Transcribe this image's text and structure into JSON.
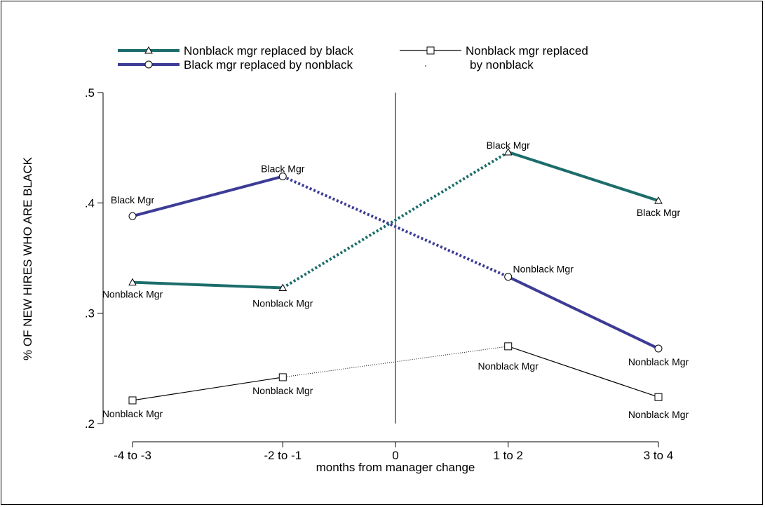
{
  "chart_data": {
    "type": "line",
    "xlabel": "months from manager change",
    "ylabel": "% OF NEW HIRES WHO ARE BLACK",
    "x_ticks": [
      "-4 to -3",
      "-2 to -1",
      "0",
      "1 to 2",
      "3 to 4"
    ],
    "x_tick_values": [
      -3.5,
      -1.5,
      0,
      1.5,
      3.5
    ],
    "y_ticks": [
      ".2",
      ".3",
      ".4",
      ".5"
    ],
    "y_tick_values": [
      0.2,
      0.3,
      0.4,
      0.5
    ],
    "ylim": [
      0.2,
      0.5
    ],
    "xlim": [
      -3.5,
      3.5
    ],
    "vertical_reference_line": 0,
    "legend_placement": "top",
    "series": [
      {
        "name": "Nonblack mgr replaced by black",
        "color": "#1b6d6b",
        "marker": "triangle",
        "x": [
          -3.5,
          -1.5,
          1.5,
          3.5
        ],
        "values": [
          0.328,
          0.323,
          0.446,
          0.402
        ],
        "point_labels": [
          "Nonblack Mgr",
          "Nonblack Mgr",
          "Black Mgr",
          "Black Mgr"
        ],
        "transition_segment": 1
      },
      {
        "name": "Black mgr replaced by nonblack",
        "color": "#3c3c96",
        "marker": "circle",
        "x": [
          -3.5,
          -1.5,
          1.5,
          3.5
        ],
        "values": [
          0.388,
          0.424,
          0.333,
          0.268
        ],
        "point_labels": [
          "Black Mgr",
          "Black Mgr",
          "Nonblack Mgr",
          "Nonblack Mgr"
        ],
        "transition_segment": 1
      },
      {
        "name": "Nonblack mgr replaced by nonblack",
        "legend_lines": [
          "Nonblack mgr replaced",
          "by nonblack"
        ],
        "color": "#000000",
        "marker": "square",
        "x": [
          -3.5,
          -1.5,
          1.5,
          3.5
        ],
        "values": [
          0.221,
          0.242,
          0.27,
          0.224
        ],
        "point_labels": [
          "Nonblack Mgr",
          "Nonblack Mgr",
          "Nonblack Mgr",
          "Nonblack Mgr"
        ],
        "transition_segment": 1
      }
    ]
  }
}
